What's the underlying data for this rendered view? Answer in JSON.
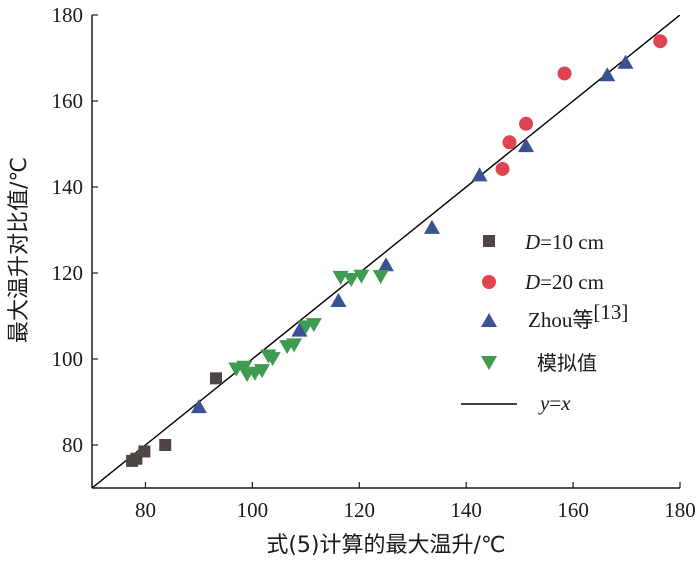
{
  "chart_data": {
    "type": "scatter",
    "xlabel": "式(5)计算的最大温升/℃",
    "ylabel": "最大温升对比值/℃",
    "xlim": [
      70,
      180
    ],
    "ylim": [
      70,
      180
    ],
    "xticks": [
      80,
      100,
      120,
      140,
      160,
      180
    ],
    "yticks": [
      80,
      100,
      120,
      140,
      160,
      180
    ],
    "grid": false,
    "legend_position": "center-right",
    "series": [
      {
        "name": "D=10 cm",
        "label_italic": "D",
        "label_rest": "=10 cm",
        "marker": "square",
        "color": "#4d4643",
        "points": [
          [
            77.5,
            76.3
          ],
          [
            78.3,
            76.8
          ],
          [
            79.8,
            78.5
          ],
          [
            83.7,
            80.0
          ],
          [
            93.2,
            95.5
          ]
        ]
      },
      {
        "name": "D=20 cm",
        "label_italic": "D",
        "label_rest": "=20 cm",
        "marker": "circle",
        "color": "#e0454f",
        "points": [
          [
            146.8,
            144.2
          ],
          [
            148.1,
            150.4
          ],
          [
            151.2,
            154.7
          ],
          [
            158.4,
            166.4
          ],
          [
            176.3,
            173.9
          ]
        ]
      },
      {
        "name": "Zhou等[13]",
        "label_text": "Zhou等",
        "label_sup": "[13]",
        "marker": "triangle-up",
        "color": "#3a5193",
        "points": [
          [
            90.0,
            88.8
          ],
          [
            108.8,
            106.6
          ],
          [
            116.1,
            113.5
          ],
          [
            125.0,
            121.8
          ],
          [
            133.6,
            130.5
          ],
          [
            142.5,
            142.7
          ],
          [
            151.2,
            149.5
          ],
          [
            166.4,
            166.0
          ],
          [
            169.8,
            168.9
          ]
        ]
      },
      {
        "name": "模拟值",
        "marker": "triangle-down",
        "color": "#3f9a52",
        "points": [
          [
            97.0,
            97.8
          ],
          [
            98.5,
            98.2
          ],
          [
            99.0,
            96.5
          ],
          [
            100.5,
            96.8
          ],
          [
            101.8,
            97.4
          ],
          [
            103.0,
            100.8
          ],
          [
            103.8,
            100.2
          ],
          [
            106.5,
            103.0
          ],
          [
            107.8,
            103.4
          ],
          [
            110.0,
            107.6
          ],
          [
            111.5,
            108.1
          ],
          [
            116.5,
            119.1
          ],
          [
            118.5,
            118.6
          ],
          [
            120.4,
            119.4
          ],
          [
            124.0,
            119.3
          ]
        ]
      }
    ],
    "reference_line": {
      "name": "y=x",
      "label_italic_y": "y",
      "label_eq": "=",
      "label_italic_x": "x",
      "from": [
        70,
        70
      ],
      "to": [
        180,
        180
      ]
    }
  }
}
